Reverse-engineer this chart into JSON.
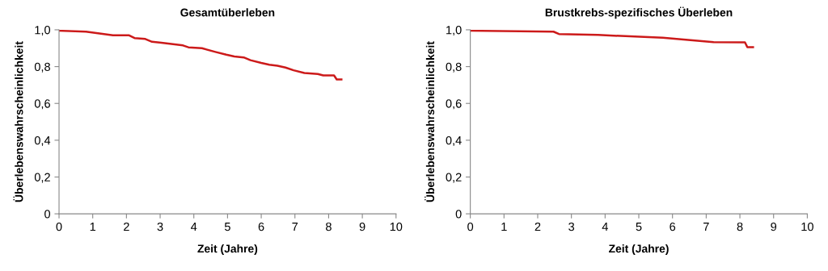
{
  "chart_data": [
    {
      "type": "line",
      "title": "Gesamtüberleben",
      "xlabel": "Zeit (Jahre)",
      "ylabel": "Überlebenswahrscheinlichkeit",
      "series": [
        {
          "color": "#cc1a1a",
          "x": [
            0,
            0.8,
            1.6,
            2.08,
            2.24,
            2.56,
            2.76,
            3.04,
            3.68,
            3.84,
            4.24,
            4.64,
            4.96,
            5.2,
            5.48,
            5.68,
            6.0,
            6.24,
            6.48,
            6.72,
            6.96,
            7.28,
            7.68,
            7.84,
            8.16,
            8.24,
            8.38
          ],
          "values": [
            0.995,
            0.99,
            0.97,
            0.97,
            0.955,
            0.95,
            0.935,
            0.93,
            0.915,
            0.905,
            0.9,
            0.88,
            0.865,
            0.855,
            0.85,
            0.835,
            0.82,
            0.81,
            0.805,
            0.795,
            0.78,
            0.765,
            0.76,
            0.752,
            0.752,
            0.73,
            0.73
          ]
        }
      ],
      "xlim": [
        0,
        10
      ],
      "ylim": [
        0,
        1.0
      ],
      "xticks": [
        0,
        1,
        2,
        3,
        4,
        5,
        6,
        7,
        8,
        9,
        10
      ],
      "yticks": [
        {
          "value": 0,
          "label": "0"
        },
        {
          "value": 0.2,
          "label": "0,2"
        },
        {
          "value": 0.4,
          "label": "0,4"
        },
        {
          "value": 0.6,
          "label": "0,6"
        },
        {
          "value": 0.8,
          "label": "0,8"
        },
        {
          "value": 1.0,
          "label": "1,0"
        }
      ],
      "grid": false
    },
    {
      "type": "line",
      "title": "Brustkrebs-spezifisches Überleben",
      "xlabel": "Zeit (Jahre)",
      "ylabel": "Überlebenswahrscheinlichkeit",
      "series": [
        {
          "color": "#cc1a1a",
          "x": [
            0,
            2.47,
            2.63,
            3.79,
            5.71,
            7.22,
            8.15,
            8.22,
            8.39
          ],
          "values": [
            0.995,
            0.99,
            0.977,
            0.972,
            0.957,
            0.933,
            0.932,
            0.906,
            0.906
          ]
        }
      ],
      "xlim": [
        0,
        10
      ],
      "ylim": [
        0,
        1.0
      ],
      "xticks": [
        0,
        1,
        2,
        3,
        4,
        5,
        6,
        7,
        8,
        9,
        10
      ],
      "yticks": [
        {
          "value": 0,
          "label": "0"
        },
        {
          "value": 0.2,
          "label": "0,2"
        },
        {
          "value": 0.4,
          "label": "0,4"
        },
        {
          "value": 0.6,
          "label": "0,6"
        },
        {
          "value": 0.8,
          "label": "0,8"
        },
        {
          "value": 1.0,
          "label": "1,0"
        }
      ],
      "grid": false
    }
  ]
}
